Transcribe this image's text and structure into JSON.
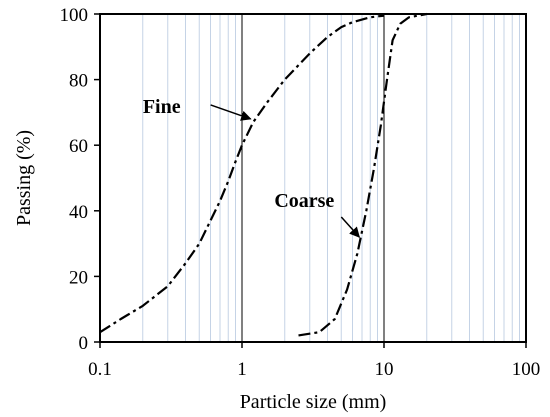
{
  "chart_data": {
    "type": "line",
    "xlabel": "Particle size (mm)",
    "ylabel": "Passing (%)",
    "xscale": "log",
    "xlim": [
      0.1,
      100
    ],
    "ylim": [
      0,
      100
    ],
    "xticks": [
      0.1,
      1,
      10,
      100
    ],
    "xtick_labels": [
      "0.1",
      "1",
      "10",
      "100"
    ],
    "yticks": [
      0,
      20,
      40,
      60,
      80,
      100
    ],
    "ytick_labels": [
      "0",
      "20",
      "40",
      "60",
      "80",
      "100"
    ],
    "grid": "vertical minor gridlines (light blue), major gridlines at decades (black)",
    "line_style": "dash-dot",
    "line_color": "#000000",
    "grid_color": "#c5d3e6",
    "series": [
      {
        "name": "Fine",
        "x": [
          0.1,
          0.14,
          0.2,
          0.3,
          0.4,
          0.5,
          0.6,
          0.7,
          0.8,
          0.9,
          1.0,
          1.2,
          1.5,
          2.0,
          3.0,
          4.0,
          5.0,
          6.0,
          8.0,
          10.0
        ],
        "y": [
          3,
          7,
          11,
          17,
          24,
          30,
          37,
          43,
          49,
          55,
          60,
          67,
          73,
          80,
          88,
          93,
          96,
          97.5,
          99,
          99.5
        ]
      },
      {
        "name": "Coarse",
        "x": [
          2.5,
          3.5,
          4.5,
          5.5,
          6.5,
          7.5,
          8.5,
          9.5,
          10.5,
          11.5,
          13.0,
          15.0,
          20.0
        ],
        "y": [
          2,
          3,
          7,
          16,
          27,
          40,
          53,
          66,
          80,
          92,
          97,
          99,
          100
        ]
      }
    ],
    "annotations": [
      {
        "text": "Fine",
        "points_to": {
          "x": 1.15,
          "y": 68
        }
      },
      {
        "text": "Coarse",
        "points_to": {
          "x": 6.7,
          "y": 32
        }
      }
    ]
  }
}
